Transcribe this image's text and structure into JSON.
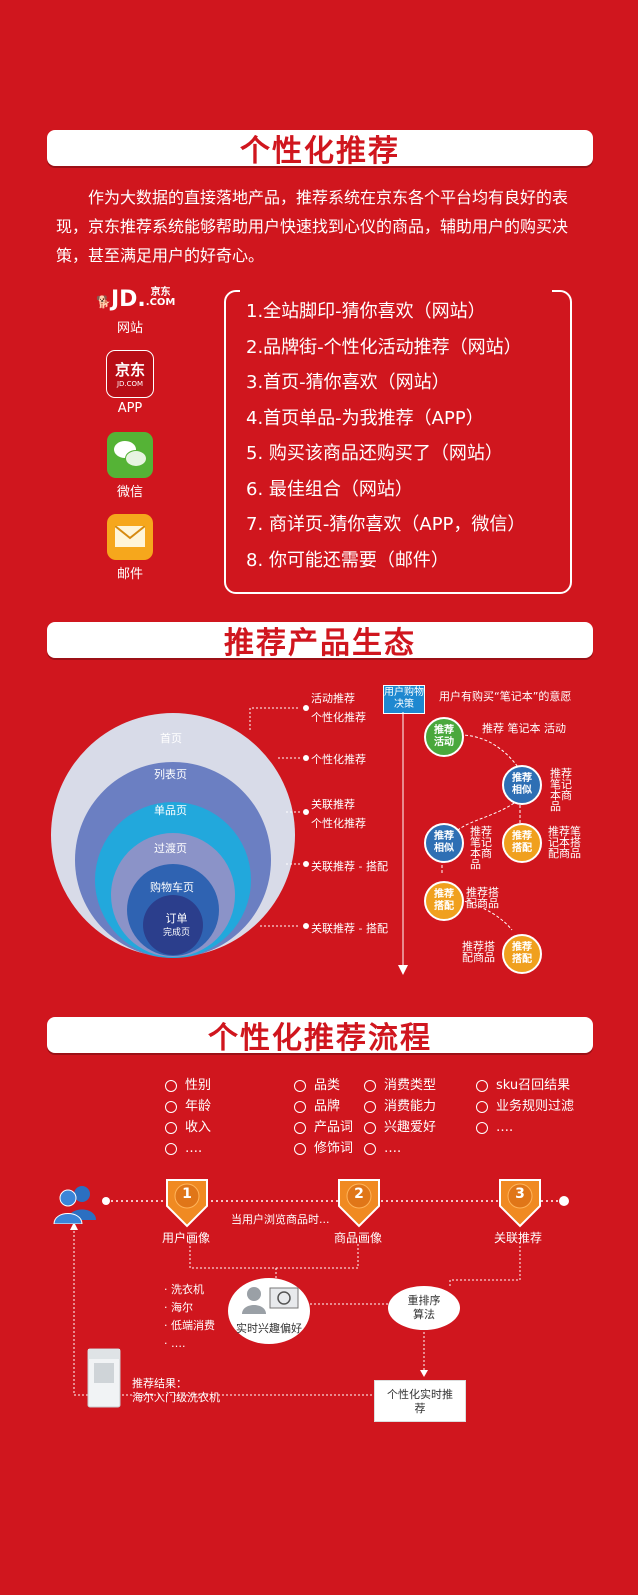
{
  "section1": {
    "title": "个性化推荐",
    "intro": "作为大数据的直接落地产品，推荐系统在京东各个平台均有良好的表现，京东推荐系统能够帮助用户快速找到心仪的商品，辅助用户的购买决策，甚至满足用户的好奇心。",
    "platforms": [
      {
        "logo_text": "JD.",
        "logo_sub": "京东",
        "logo_sub2": ".COM",
        "label": "网站"
      },
      {
        "logo_text": "京东",
        "logo_sub": "JD.COM",
        "label": "APP"
      },
      {
        "label": "微信",
        "icon": "wechat-icon"
      },
      {
        "label": "邮件",
        "icon": "mail-icon"
      }
    ],
    "recommendations": [
      "1.全站脚印-猜你喜欢（网站）",
      "2.品牌街-个性化活动推荐（网站）",
      "3.首页-猜你喜欢（网站）",
      "4.首页单品-为我推荐（APP）",
      "5. 购买该商品还购买了（网站）",
      "6. 最佳组合（网站）",
      "7. 商详页-猜你喜欢（APP，微信）",
      "8. 你可能还需要（邮件）"
    ]
  },
  "section2": {
    "title": "推荐产品生态",
    "rings": [
      "首页",
      "列表页",
      "单品页",
      "过渡页",
      "购物车页",
      "订单",
      "完成页"
    ],
    "ring_colors": [
      "#d8dbe8",
      "#6b7fc2",
      "#22a8dc",
      "#8b93c8",
      "#2f63b2",
      "#2b3e8c"
    ],
    "annotations": [
      "活动推荐",
      "个性化推荐",
      "个性化推荐",
      "关联推荐",
      "个性化推荐",
      "关联推荐 - 搭配",
      "关联推荐 - 搭配"
    ],
    "decision_box": "用户购物决策",
    "intent_note": "用户有购买“笔记本”的意愿",
    "nodes": [
      {
        "label": "推荐活动",
        "color": "#4aa83c"
      },
      {
        "label": "推荐相似",
        "color": "#2e6fb4"
      },
      {
        "label": "推荐相似",
        "color": "#2e6fb4"
      },
      {
        "label": "推荐搭配",
        "color": "#f0a01e"
      },
      {
        "label": "推荐搭配",
        "color": "#f0a01e"
      },
      {
        "label": "推荐搭配",
        "color": "#f0a01e"
      }
    ],
    "node_notes": [
      "推荐 笔记本 活动",
      "推荐笔记本商品",
      "推荐笔记本商品",
      "推荐笔记本搭配商品",
      "推荐搭配商品",
      "推荐搭配商品"
    ]
  },
  "section3": {
    "title": "个性化推荐流程",
    "attr_col1": [
      "性别",
      "年龄",
      "收入",
      "…."
    ],
    "attr_col2": [
      "品类",
      "品牌",
      "产品词",
      "修饰词"
    ],
    "attr_col3": [
      "消费类型",
      "消费能力",
      "兴趣爱好",
      "…."
    ],
    "attr_col4": [
      "sku召回结果",
      "业务规则过滤",
      "…."
    ],
    "steps": [
      {
        "num": "1",
        "label": "用户画像"
      },
      {
        "num": "2",
        "label": "商品画像"
      },
      {
        "num": "3",
        "label": "关联推荐"
      }
    ],
    "browse_note": "当用户浏览商品时...",
    "bullets": [
      "洗衣机",
      "海尔",
      "低端消费",
      "…."
    ],
    "interest_label": "实时兴趣偏好",
    "rerank_label": "重排序算法",
    "personal_label": "个性化实时推荐",
    "result_label": "推荐结果：",
    "result_value": "海尔入门级洗衣机"
  }
}
